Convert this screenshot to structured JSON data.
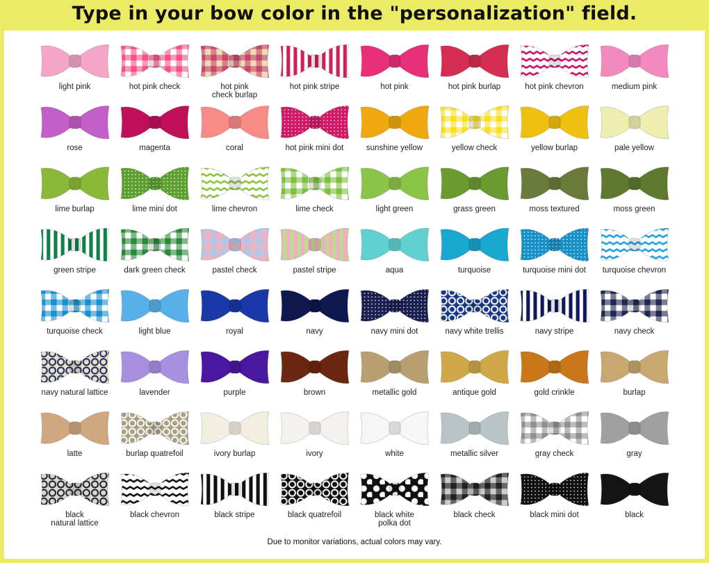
{
  "title": "Type in your bow color in the \"personalization\" field.",
  "footer": "Due to monitor variations, actual colors may vary.",
  "bows": [
    {
      "name": "light pink",
      "color": "#f4a6c8",
      "pattern": "solid"
    },
    {
      "name": "hot pink check",
      "color": "#f7508a",
      "secondary": "#ffffff",
      "pattern": "check"
    },
    {
      "name": "hot pink\ncheck burlap",
      "color": "#c8466a",
      "secondary": "#eedcb8",
      "pattern": "check"
    },
    {
      "name": "hot pink stripe",
      "color": "#d0205a",
      "secondary": "#ffffff",
      "pattern": "stripe"
    },
    {
      "name": "hot pink",
      "color": "#e8307a",
      "pattern": "solid"
    },
    {
      "name": "hot pink burlap",
      "color": "#d42e52",
      "pattern": "solid"
    },
    {
      "name": "hot pink chevron",
      "color": "#c8106a",
      "secondary": "#ffffff",
      "pattern": "chevron"
    },
    {
      "name": "medium pink",
      "color": "#f28ac0",
      "pattern": "solid"
    },
    {
      "name": "rose",
      "color": "#c45ec8",
      "pattern": "solid"
    },
    {
      "name": "magenta",
      "color": "#c0105a",
      "pattern": "solid"
    },
    {
      "name": "coral",
      "color": "#f88a88",
      "pattern": "solid"
    },
    {
      "name": "hot pink mini dot",
      "color": "#d01a68",
      "secondary": "#ffffff",
      "pattern": "dot"
    },
    {
      "name": "sunshine yellow",
      "color": "#f0a810",
      "pattern": "solid"
    },
    {
      "name": "yellow check",
      "color": "#f8e020",
      "secondary": "#ffffff",
      "pattern": "check"
    },
    {
      "name": "yellow burlap",
      "color": "#f0c010",
      "pattern": "solid"
    },
    {
      "name": "pale yellow",
      "color": "#eeeeb0",
      "pattern": "solid"
    },
    {
      "name": "lime burlap",
      "color": "#8ab838",
      "pattern": "solid"
    },
    {
      "name": "lime mini dot",
      "color": "#5ca030",
      "secondary": "#ffffff",
      "pattern": "dot"
    },
    {
      "name": "lime chevron",
      "color": "#8cc43a",
      "secondary": "#ffffff",
      "pattern": "chevron"
    },
    {
      "name": "lime check",
      "color": "#7cc040",
      "secondary": "#ffffff",
      "pattern": "check"
    },
    {
      "name": "light green",
      "color": "#8cc448",
      "pattern": "solid"
    },
    {
      "name": "grass green",
      "color": "#6a9a30",
      "pattern": "solid"
    },
    {
      "name": "moss textured",
      "color": "#6a7a3a",
      "pattern": "solid"
    },
    {
      "name": "moss green",
      "color": "#5e7a30",
      "pattern": "solid"
    },
    {
      "name": "green stripe",
      "color": "#108048",
      "secondary": "#ffffff",
      "pattern": "stripe"
    },
    {
      "name": "dark green check",
      "color": "#2a8a3a",
      "secondary": "#ffffff",
      "pattern": "check"
    },
    {
      "name": "pastel check",
      "color": "#b0c8e8",
      "secondary": "#f8b0c0",
      "pattern": "check"
    },
    {
      "name": "pastel stripe",
      "color": "#f8a8c8",
      "secondary": "#b8e088",
      "pattern": "stripe"
    },
    {
      "name": "aqua",
      "color": "#60d0d0",
      "pattern": "solid"
    },
    {
      "name": "turquoise",
      "color": "#18a8d0",
      "pattern": "solid"
    },
    {
      "name": "turquoise mini dot",
      "color": "#1890c8",
      "secondary": "#ffffff",
      "pattern": "dot"
    },
    {
      "name": "turquoise chevron",
      "color": "#20a0e0",
      "secondary": "#ffffff",
      "pattern": "chevron"
    },
    {
      "name": "turquoise check",
      "color": "#1890d0",
      "secondary": "#ffffff",
      "pattern": "check"
    },
    {
      "name": "light blue",
      "color": "#58b0e8",
      "pattern": "solid"
    },
    {
      "name": "royal",
      "color": "#1a38a8",
      "pattern": "solid"
    },
    {
      "name": "navy",
      "color": "#101850",
      "pattern": "solid"
    },
    {
      "name": "navy mini dot",
      "color": "#1a2050",
      "secondary": "#ffffff",
      "pattern": "dot"
    },
    {
      "name": "navy white trellis",
      "color": "#1a3888",
      "secondary": "#ffffff",
      "pattern": "lattice"
    },
    {
      "name": "navy stripe",
      "color": "#10185a",
      "secondary": "#ffffff",
      "pattern": "stripe"
    },
    {
      "name": "navy check",
      "color": "#202850",
      "secondary": "#ffffff",
      "pattern": "check"
    },
    {
      "name": "navy natural lattice",
      "color": "#e8e0c8",
      "secondary": "#1a2a60",
      "pattern": "lattice"
    },
    {
      "name": "lavender",
      "color": "#a890e0",
      "pattern": "solid"
    },
    {
      "name": "purple",
      "color": "#4a18a0",
      "pattern": "solid"
    },
    {
      "name": "brown",
      "color": "#6a2810",
      "pattern": "solid"
    },
    {
      "name": "metallic gold",
      "color": "#b8a070",
      "pattern": "solid"
    },
    {
      "name": "antique gold",
      "color": "#d0a848",
      "pattern": "solid"
    },
    {
      "name": "gold crinkle",
      "color": "#c87818",
      "pattern": "solid"
    },
    {
      "name": "burlap",
      "color": "#c8a870",
      "pattern": "solid"
    },
    {
      "name": "latte",
      "color": "#d0a880",
      "pattern": "solid"
    },
    {
      "name": "burlap quatrefoil",
      "color": "#a8a080",
      "secondary": "#ffffff",
      "pattern": "lattice"
    },
    {
      "name": "ivory burlap",
      "color": "#f2eee0",
      "pattern": "solid"
    },
    {
      "name": "ivory",
      "color": "#f4f2ee",
      "pattern": "solid"
    },
    {
      "name": "white",
      "color": "#f6f6f6",
      "pattern": "solid"
    },
    {
      "name": "metallic silver",
      "color": "#b8c4c8",
      "pattern": "solid"
    },
    {
      "name": "gray check",
      "color": "#909090",
      "secondary": "#ffffff",
      "pattern": "check"
    },
    {
      "name": "gray",
      "color": "#a0a0a0",
      "pattern": "solid"
    },
    {
      "name": "black\nnatural lattice",
      "color": "#d8d8d8",
      "secondary": "#202020",
      "pattern": "lattice"
    },
    {
      "name": "black chevron",
      "color": "#111111",
      "secondary": "#ffffff",
      "pattern": "chevron"
    },
    {
      "name": "black stripe",
      "color": "#111111",
      "secondary": "#ffffff",
      "pattern": "stripe"
    },
    {
      "name": "black quatrefoil",
      "color": "#111111",
      "secondary": "#ffffff",
      "pattern": "lattice"
    },
    {
      "name": "black white\npolka dot",
      "color": "#111111",
      "secondary": "#ffffff",
      "pattern": "bigdot"
    },
    {
      "name": "black check",
      "color": "#222222",
      "secondary": "#cccccc",
      "pattern": "check"
    },
    {
      "name": "black mini dot",
      "color": "#111111",
      "secondary": "#ffffff",
      "pattern": "dot"
    },
    {
      "name": "black",
      "color": "#151515",
      "pattern": "solid"
    }
  ]
}
